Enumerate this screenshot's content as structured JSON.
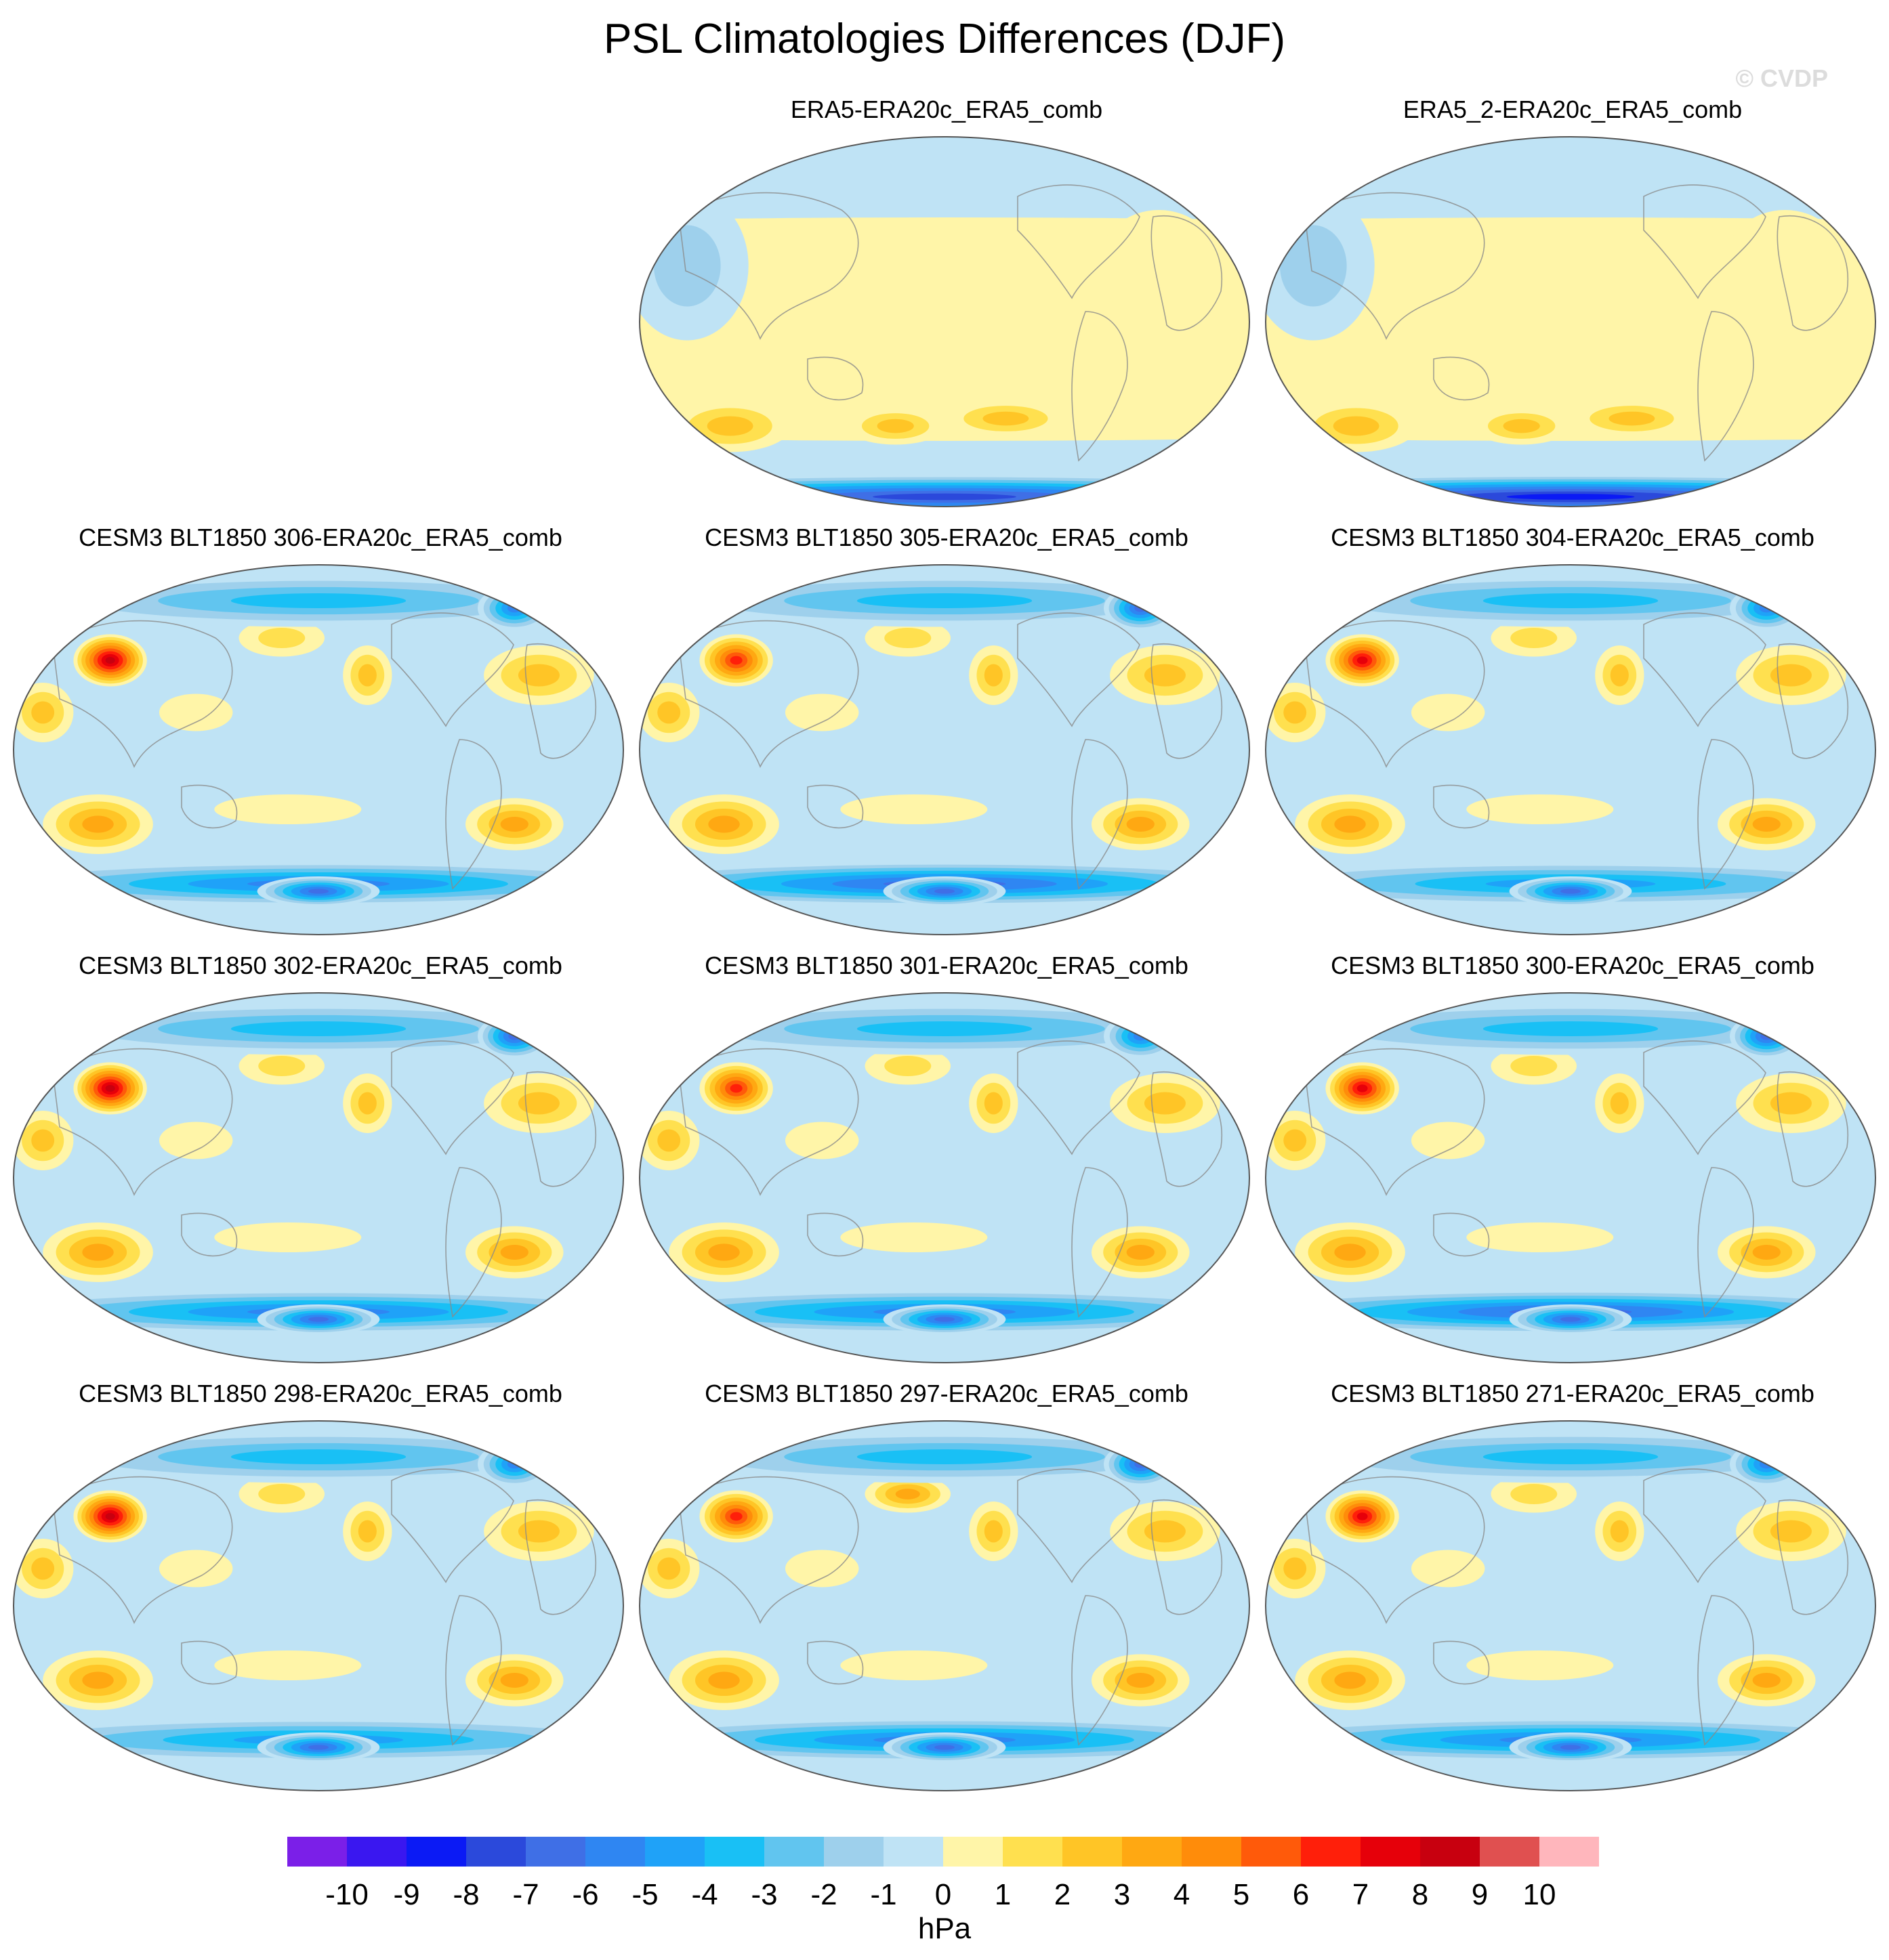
{
  "figure": {
    "title": "PSL Climatologies Differences (DJF)",
    "watermark": "© CVDP"
  },
  "panels": [
    {
      "title": "ERA5-ERA20c_ERA5_comb",
      "variant": 0
    },
    {
      "title": "ERA5_2-ERA20c_ERA5_comb",
      "variant": 1
    },
    {
      "title": "CESM3 BLT1850 306-ERA20c_ERA5_comb",
      "variant": 2
    },
    {
      "title": "CESM3 BLT1850 305-ERA20c_ERA5_comb",
      "variant": 3
    },
    {
      "title": "CESM3 BLT1850 304-ERA20c_ERA5_comb",
      "variant": 4
    },
    {
      "title": "CESM3 BLT1850 302-ERA20c_ERA5_comb",
      "variant": 5
    },
    {
      "title": "CESM3 BLT1850 301-ERA20c_ERA5_comb",
      "variant": 6
    },
    {
      "title": "CESM3 BLT1850 300-ERA20c_ERA5_comb",
      "variant": 7
    },
    {
      "title": "CESM3 BLT1850 298-ERA20c_ERA5_comb",
      "variant": 8
    },
    {
      "title": "CESM3 BLT1850 297-ERA20c_ERA5_comb",
      "variant": 9
    },
    {
      "title": "CESM3 BLT1850 271-ERA20c_ERA5_comb",
      "variant": 10
    }
  ],
  "chart_data": {
    "type": "heatmap",
    "projection": "Robinson",
    "variable": "PSL",
    "season": "DJF",
    "colorbar": {
      "units": "hPa",
      "tick_labels": [
        "-10",
        "-9",
        "-8",
        "-7",
        "-6",
        "-5",
        "-4",
        "-3",
        "-2",
        "-1",
        "0",
        "1",
        "2",
        "3",
        "4",
        "5",
        "6",
        "7",
        "8",
        "9",
        "10"
      ],
      "colors": [
        "#7b1fe8",
        "#3a17f0",
        "#0b1af5",
        "#2b49db",
        "#3f6fe6",
        "#2f86f2",
        "#1fa2f8",
        "#19c0f5",
        "#61c5ef",
        "#9ed0ec",
        "#bfe3f5",
        "#fff5a8",
        "#ffe04f",
        "#ffc526",
        "#ffa812",
        "#ff8c0a",
        "#ff5a0a",
        "#ff1f0a",
        "#e6000a",
        "#c8000f",
        "#e05050",
        "#ffb6bc"
      ]
    }
  }
}
